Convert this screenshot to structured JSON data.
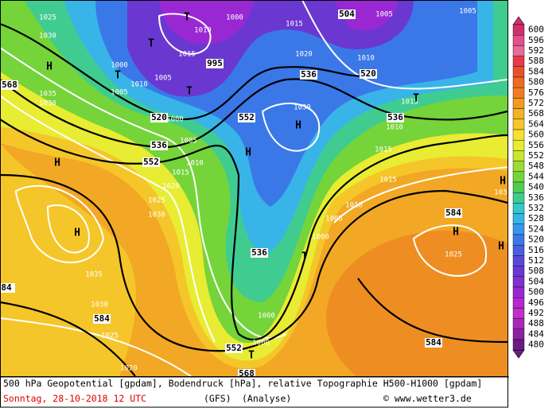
{
  "map": {
    "labels": [
      "1025",
      "1030",
      "H",
      "568",
      "1035",
      "1030",
      "T",
      "1000",
      "1010",
      "T",
      "1015",
      "995",
      "1000",
      "T",
      "1005",
      "1010",
      "1005",
      "T",
      "520",
      "1000",
      "1015",
      "1020",
      "504",
      "1005",
      "1005",
      "1010",
      "536",
      "520",
      "1030",
      "H",
      "552",
      "536",
      "1005",
      "552",
      "1010",
      "1015",
      "H",
      "1015",
      "T",
      "536",
      "1010",
      "1015",
      "1015",
      "H",
      "1020",
      "1025",
      "1030",
      "H",
      "1010",
      "1005",
      "1000",
      "584",
      "H",
      "1025",
      "H",
      "H",
      "1030",
      "536",
      "T",
      "1035",
      "84",
      "1030",
      "584",
      "1000",
      "1025",
      "1000",
      "552",
      "T",
      "584",
      "1020",
      "568"
    ]
  },
  "legend": {
    "values": [
      600,
      596,
      592,
      588,
      584,
      580,
      576,
      572,
      568,
      564,
      560,
      556,
      552,
      548,
      544,
      540,
      536,
      532,
      528,
      524,
      520,
      516,
      512,
      508,
      504,
      500,
      496,
      492,
      488,
      484,
      480
    ],
    "colors": [
      "#d0306a",
      "#e0508a",
      "#e66a9a",
      "#ea3a4a",
      "#e8502a",
      "#ee6a22",
      "#f07e20",
      "#f39a22",
      "#f5b128",
      "#f5c62a",
      "#f7e032",
      "#e8ec32",
      "#c8e632",
      "#9cdc32",
      "#74d43a",
      "#50cc50",
      "#40cc90",
      "#34c8c8",
      "#38b4e8",
      "#3896ec",
      "#3a78e8",
      "#4a5ee0",
      "#5a48d8",
      "#6a38d0",
      "#8030d0",
      "#9a28d2",
      "#b428d0",
      "#c030c8",
      "#a828b8",
      "#8c22a0",
      "#6a1c84"
    ]
  },
  "footer": {
    "title": "500 hPa Geopotential [gpdam], Bodendruck [hPa], relative Topographie H500-H1000 [gpdam]",
    "date": "Sonntag, 28-10-2018  12 UTC",
    "model": "(GFS)",
    "analysis": "(Analyse)",
    "credit": "© www.wetter3.de"
  }
}
